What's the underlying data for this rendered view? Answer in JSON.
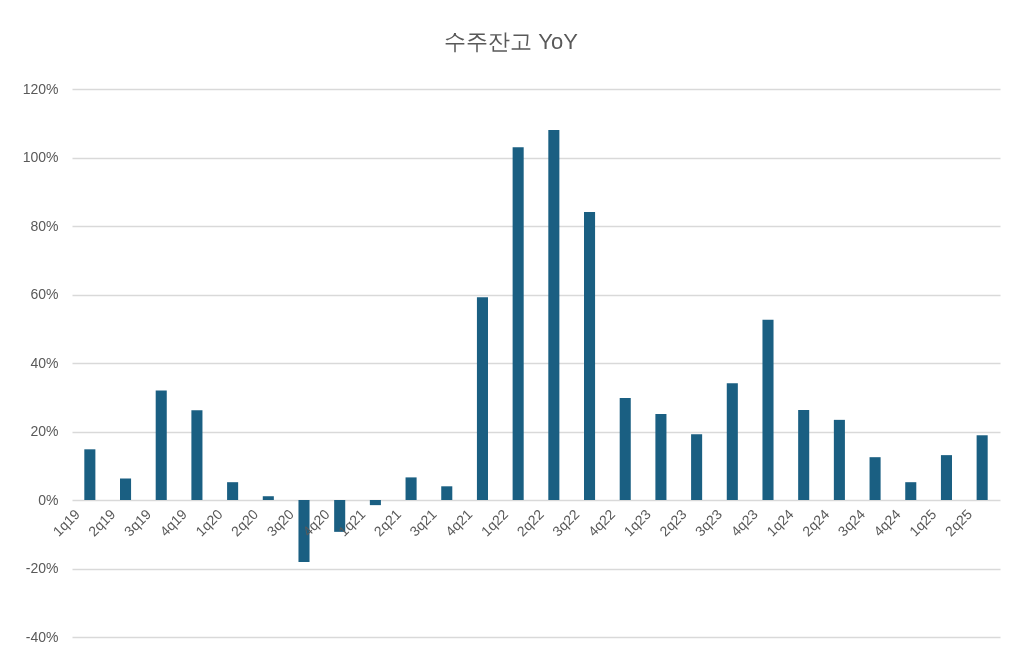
{
  "chart_data": {
    "type": "bar",
    "title": "수주잔고 YoY",
    "categories": [
      "1q19",
      "2q19",
      "3q19",
      "4q19",
      "1q20",
      "2q20",
      "3q20",
      "4q20",
      "1q21",
      "2q21",
      "3q21",
      "4q21",
      "1q22",
      "2q22",
      "3q22",
      "4q22",
      "1q23",
      "2q23",
      "3q23",
      "4q23",
      "1q24",
      "2q24",
      "3q24",
      "4q24",
      "1q25",
      "2q25"
    ],
    "values": [
      14.8,
      6.3,
      32.0,
      26.2,
      5.2,
      1.1,
      -18.1,
      -9.3,
      -1.5,
      6.6,
      4.0,
      59.2,
      103.0,
      108.0,
      84.1,
      29.8,
      25.1,
      19.2,
      34.1,
      52.6,
      26.3,
      23.4,
      12.5,
      5.2,
      13.1,
      18.9
    ],
    "color": "#1a5f82",
    "ylim": [
      -40,
      120
    ],
    "yticks": [
      {
        "value": -40,
        "label": "-40%"
      },
      {
        "value": -20,
        "label": "-20%"
      },
      {
        "value": 0,
        "label": "0%"
      },
      {
        "value": 20,
        "label": "20%"
      },
      {
        "value": 40,
        "label": "40%"
      },
      {
        "value": 60,
        "label": "60%"
      },
      {
        "value": 80,
        "label": "80%"
      },
      {
        "value": 100,
        "label": "100%"
      },
      {
        "value": 120,
        "label": "120%"
      }
    ],
    "grid": "y"
  }
}
